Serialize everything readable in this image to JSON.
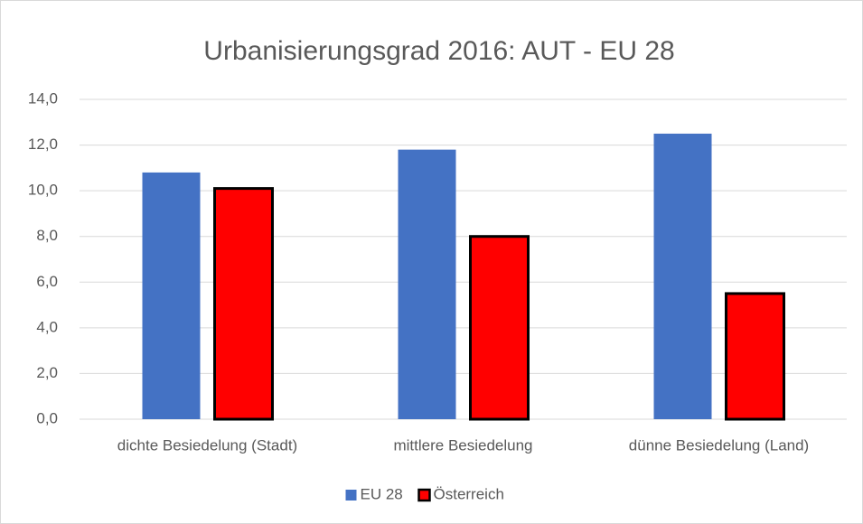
{
  "chart_data": {
    "type": "bar",
    "title": "Urbanisierungsgrad 2016: AUT - EU 28",
    "categories": [
      "dichte Besiedelung (Stadt)",
      "mittlere Besiedelung",
      "dünne Besiedelung (Land)"
    ],
    "series": [
      {
        "name": "EU 28",
        "color": "#4472c4",
        "values": [
          10.8,
          11.8,
          12.5
        ]
      },
      {
        "name": "Österreich",
        "color": "#ff0000",
        "edgecolor": "#000000",
        "values": [
          10.1,
          8.0,
          5.5
        ]
      }
    ],
    "ylim": [
      0,
      14
    ],
    "yticks": [
      {
        "value": 0,
        "label": "0,0"
      },
      {
        "value": 2,
        "label": "2,0"
      },
      {
        "value": 4,
        "label": "4,0"
      },
      {
        "value": 6,
        "label": "6,0"
      },
      {
        "value": 8,
        "label": "8,0"
      },
      {
        "value": 10,
        "label": "10,0"
      },
      {
        "value": 12,
        "label": "12,0"
      },
      {
        "value": 14,
        "label": "14,0"
      }
    ],
    "grid": true,
    "legend": "bottom"
  }
}
